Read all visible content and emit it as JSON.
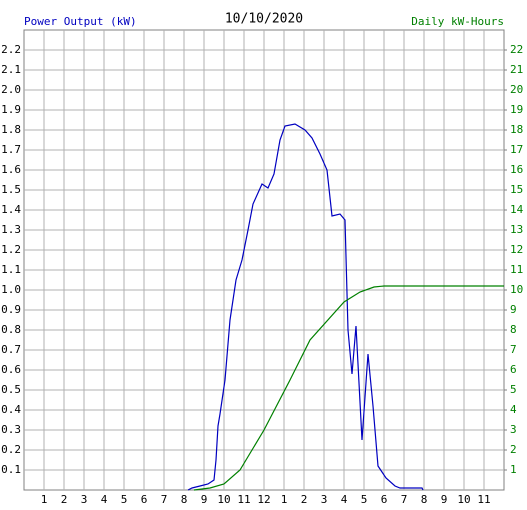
{
  "chart_data": {
    "type": "line",
    "title": "10/10/2020",
    "y_label": "Power Output (kW)",
    "y2_label": "Daily kW-Hours",
    "y_label_color": "#0000c0",
    "y2_label_color": "#008000",
    "xlim": [
      0,
      24
    ],
    "xticks": [
      1,
      2,
      3,
      4,
      5,
      6,
      7,
      8,
      9,
      10,
      11,
      12,
      {
        "value": 13,
        "label": "1"
      },
      {
        "value": 14,
        "label": "2"
      },
      {
        "value": 15,
        "label": "3"
      },
      {
        "value": 16,
        "label": "4"
      },
      {
        "value": 17,
        "label": "5"
      },
      {
        "value": 18,
        "label": "6"
      },
      {
        "value": 19,
        "label": "7"
      },
      {
        "value": 20,
        "label": "8"
      },
      {
        "value": 21,
        "label": "9"
      },
      {
        "value": 22,
        "label": "10"
      },
      {
        "value": 23,
        "label": "11"
      }
    ],
    "ylim": [
      0,
      2.3
    ],
    "yticks": [
      0.1,
      0.2,
      0.3,
      0.4,
      0.5,
      0.6,
      0.7,
      0.8,
      0.9,
      {
        "value": 1,
        "label": "1.0"
      },
      1.1,
      1.2,
      1.3,
      1.4,
      1.5,
      1.6,
      1.7,
      1.8,
      1.9,
      {
        "value": 2,
        "label": "2.0"
      },
      2.1,
      2.2
    ],
    "y2lim": [
      0,
      23
    ],
    "y2ticks": [
      1,
      2,
      3,
      4,
      5,
      6,
      7,
      8,
      9,
      10,
      11,
      12,
      13,
      14,
      15,
      16,
      17,
      18,
      19,
      20,
      21,
      22
    ],
    "grid": true,
    "series": [
      {
        "name": "Power Output (kW)",
        "color": "#0000c0",
        "x": [
          8.2,
          8.4,
          8.8,
          9.2,
          9.5,
          9.6,
          9.7,
          9.8,
          10.05,
          10.3,
          10.6,
          10.9,
          11.2,
          11.45,
          11.9,
          12.2,
          12.5,
          12.8,
          13.05,
          13.55,
          14.05,
          14.4,
          14.8,
          15.15,
          15.4,
          15.8,
          16.05,
          16.2,
          16.4,
          16.6,
          16.9,
          17.2,
          17.45,
          17.7,
          18.1,
          18.55,
          18.8,
          19.9,
          19.95
        ],
        "values": [
          0,
          0.01,
          0.02,
          0.03,
          0.05,
          0.15,
          0.32,
          0.38,
          0.55,
          0.85,
          1.05,
          1.15,
          1.3,
          1.43,
          1.53,
          1.51,
          1.58,
          1.75,
          1.82,
          1.83,
          1.8,
          1.76,
          1.68,
          1.6,
          1.37,
          1.38,
          1.35,
          0.8,
          0.58,
          0.82,
          0.25,
          0.68,
          0.42,
          0.12,
          0.06,
          0.02,
          0.01,
          0.01,
          0
        ]
      },
      {
        "name": "Daily kW-Hours",
        "color": "#008000",
        "axis": "y2",
        "x": [
          8.5,
          9.3,
          10,
          10.8,
          12,
          13.3,
          14.3,
          16,
          16.8,
          17.5,
          18,
          24
        ],
        "values": [
          0,
          0.1,
          0.3,
          1,
          3,
          5.5,
          7.5,
          9.4,
          9.9,
          10.15,
          10.2,
          10.2
        ]
      }
    ]
  }
}
